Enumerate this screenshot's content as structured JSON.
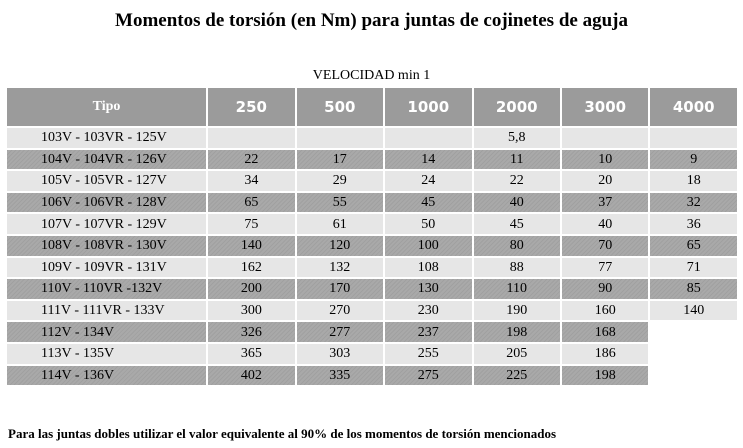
{
  "title": "Momentos de torsión (en Nm) para juntas de cojinetes de aguja",
  "caption": "VELOCIDAD min 1",
  "headers": [
    "Tipo",
    "250",
    "500",
    "1000",
    "2000",
    "3000",
    "4000"
  ],
  "rows": [
    {
      "tipo": "103V - 103VR - 125V",
      "v": [
        "",
        "",
        "",
        "5,8",
        "",
        ""
      ]
    },
    {
      "tipo": "104V - 104VR - 126V",
      "v": [
        "22",
        "17",
        "14",
        "11",
        "10",
        "9"
      ]
    },
    {
      "tipo": "105V - 105VR - 127V",
      "v": [
        "34",
        "29",
        "24",
        "22",
        "20",
        "18"
      ]
    },
    {
      "tipo": "106V - 106VR - 128V",
      "v": [
        "65",
        "55",
        "45",
        "40",
        "37",
        "32"
      ]
    },
    {
      "tipo": "107V - 107VR - 129V",
      "v": [
        "75",
        "61",
        "50",
        "45",
        "40",
        "36"
      ]
    },
    {
      "tipo": "108V - 108VR - 130V",
      "v": [
        "140",
        "120",
        "100",
        "80",
        "70",
        "65"
      ]
    },
    {
      "tipo": "109V - 109VR - 131V",
      "v": [
        "162",
        "132",
        "108",
        "88",
        "77",
        "71"
      ]
    },
    {
      "tipo": "110V - 110VR -132V",
      "v": [
        "200",
        "170",
        "130",
        "110",
        "90",
        "85"
      ]
    },
    {
      "tipo": "111V - 111VR - 133V",
      "v": [
        "300",
        "270",
        "230",
        "190",
        "160",
        "140"
      ]
    },
    {
      "tipo": "112V - 134V",
      "v": [
        "326",
        "277",
        "237",
        "198",
        "168",
        ""
      ]
    },
    {
      "tipo": "113V - 135V",
      "v": [
        "365",
        "303",
        "255",
        "205",
        "186",
        ""
      ]
    },
    {
      "tipo": "114V - 136V",
      "v": [
        "402",
        "335",
        "275",
        "225",
        "198",
        ""
      ]
    }
  ],
  "footnote": "Para las juntas dobles utilizar el valor equivalente al 90% de los momentos de torsión mencionados"
}
